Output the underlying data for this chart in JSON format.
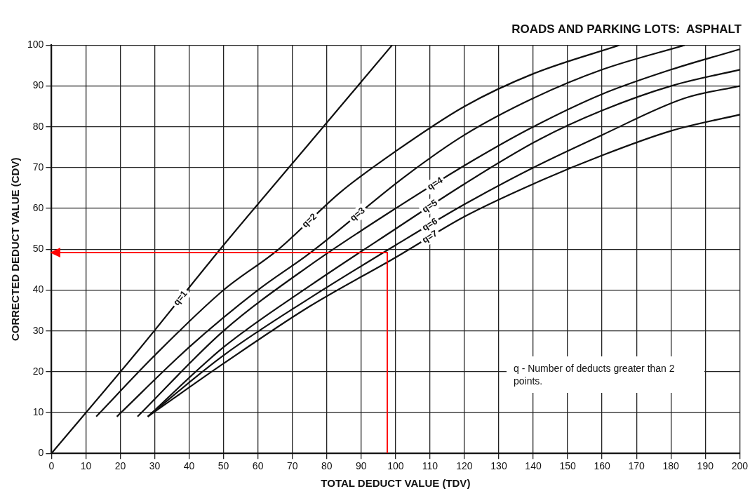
{
  "chart_data": {
    "type": "line",
    "title": "ROADS AND PARKING LOTS:  ASPHALT",
    "xlabel": "TOTAL DEDUCT VALUE (TDV)",
    "ylabel": "CORRECTED DEDUCT VALUE (CDV)",
    "xlim": [
      0,
      200
    ],
    "xticks": [
      0,
      10,
      20,
      30,
      40,
      50,
      60,
      70,
      80,
      90,
      100,
      110,
      120,
      130,
      140,
      150,
      160,
      170,
      180,
      190,
      200
    ],
    "ylim": [
      0,
      100
    ],
    "yticks": [
      0,
      10,
      20,
      30,
      40,
      50,
      60,
      70,
      80,
      90,
      100
    ],
    "grid": true,
    "legend": false,
    "marker": "none",
    "line_style": "solid",
    "annotations": [
      "q - Number of deducts greater than 2 points."
    ],
    "series": [
      {
        "name": "q=1",
        "color": "#111111",
        "x": [
          0,
          25,
          50,
          75,
          99
        ],
        "values": [
          0,
          25,
          51,
          76,
          100
        ]
      },
      {
        "name": "q=2",
        "color": "#111111",
        "x": [
          13,
          30,
          50,
          66,
          84,
          100,
          120,
          140,
          165
        ],
        "values": [
          9,
          24,
          40,
          50,
          64,
          74,
          85,
          93,
          100
        ]
      },
      {
        "name": "q=3",
        "color": "#111111",
        "x": [
          19,
          40,
          60,
          75,
          103,
          120,
          140,
          160,
          184
        ],
        "values": [
          9,
          26,
          40,
          49,
          68,
          78,
          87,
          94,
          100
        ]
      },
      {
        "name": "q=4",
        "color": "#111111",
        "x": [
          25,
          50,
          75,
          100,
          123,
          140,
          160,
          180,
          200
        ],
        "values": [
          9,
          30,
          46,
          60,
          72,
          80,
          88,
          94,
          99
        ]
      },
      {
        "name": "q=5",
        "color": "#111111",
        "x": [
          28,
          50,
          75,
          100,
          120,
          142,
          160,
          180,
          200
        ],
        "values": [
          9,
          26,
          41,
          55,
          66,
          77,
          84,
          90,
          94
        ]
      },
      {
        "name": "q=6",
        "color": "#111111",
        "x": [
          28,
          50,
          75,
          100,
          120,
          140,
          160,
          184,
          200
        ],
        "values": [
          9,
          24,
          38,
          51,
          61,
          70,
          78,
          87,
          90
        ]
      },
      {
        "name": "q=7",
        "color": "#111111",
        "x": [
          28,
          50,
          75,
          100,
          120,
          140,
          160,
          180,
          200
        ],
        "values": [
          9,
          22,
          36,
          48,
          58,
          66,
          73,
          79,
          83
        ]
      }
    ]
  }
}
